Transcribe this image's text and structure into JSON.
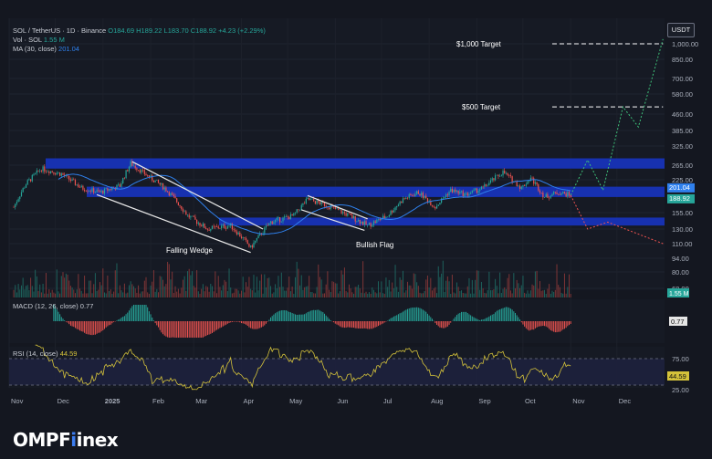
{
  "legend": {
    "symbol": "SOL / TetherUS · 1D · Binance",
    "ohlc": "O184.69  H189.22  L183.70  C188.92  +4.23 (+2.29%)",
    "vol_label": "Vol · SOL",
    "vol_value": "1.55 M",
    "ma_label": "MA (30, close)",
    "ma_value": "201.04",
    "macd_label": "MACD (12, 26, close)",
    "macd_value": "0.77",
    "rsi_label": "RSI (14, close)",
    "rsi_value": "44.59"
  },
  "currency": "USDT",
  "brand": {
    "part1": "OMPF",
    "part2": "inex"
  },
  "chart_data": {
    "type": "candlestick",
    "x_labels": [
      "Nov",
      "Dec",
      "2025",
      "Feb",
      "Mar",
      "Apr",
      "May",
      "Jun",
      "Jul",
      "Aug",
      "Sep",
      "Oct",
      "Nov",
      "Dec"
    ],
    "price_ticks": [
      "1,000.00",
      "850.00",
      "700.00",
      "580.00",
      "460.00",
      "385.00",
      "325.00",
      "265.00",
      "225.00",
      "155.00",
      "130.00",
      "110.00",
      "94.00",
      "80.00",
      "68.00"
    ],
    "price_badges": [
      {
        "value": "201.04",
        "color": "#2f80ed"
      },
      {
        "value": "188.92",
        "color": "#26a69a"
      }
    ],
    "macd_badge": "0.77",
    "rsi_ticks": [
      "75.00",
      "25.00"
    ],
    "rsi_badge": "44.59",
    "close_path": [
      [
        "2024-11-04",
        165
      ],
      [
        "2024-11-12",
        215
      ],
      [
        "2024-11-22",
        255
      ],
      [
        "2024-12-05",
        240
      ],
      [
        "2024-12-18",
        205
      ],
      [
        "2024-12-30",
        195
      ],
      [
        "2025-01-12",
        210
      ],
      [
        "2025-01-19",
        270
      ],
      [
        "2025-01-30",
        235
      ],
      [
        "2025-02-10",
        205
      ],
      [
        "2025-02-25",
        150
      ],
      [
        "2025-03-10",
        130
      ],
      [
        "2025-03-25",
        135
      ],
      [
        "2025-04-07",
        105
      ],
      [
        "2025-04-20",
        140
      ],
      [
        "2025-05-05",
        150
      ],
      [
        "2025-05-14",
        180
      ],
      [
        "2025-05-25",
        170
      ],
      [
        "2025-06-10",
        150
      ],
      [
        "2025-06-22",
        135
      ],
      [
        "2025-07-05",
        150
      ],
      [
        "2025-07-15",
        180
      ],
      [
        "2025-07-25",
        195
      ],
      [
        "2025-08-05",
        165
      ],
      [
        "2025-08-15",
        200
      ],
      [
        "2025-08-25",
        190
      ],
      [
        "2025-09-05",
        205
      ],
      [
        "2025-09-18",
        245
      ],
      [
        "2025-09-30",
        205
      ],
      [
        "2025-10-06",
        230
      ],
      [
        "2025-10-15",
        185
      ],
      [
        "2025-10-24",
        195
      ],
      [
        "2025-11-01",
        188.92
      ]
    ],
    "bands": [
      {
        "from": 255,
        "to": 285
      },
      {
        "from": 185,
        "to": 208
      },
      {
        "from": 135,
        "to": 147
      }
    ],
    "patterns": [
      {
        "label": "Falling Wedge"
      },
      {
        "label": "Bullish Flag"
      }
    ],
    "targets": [
      {
        "label": "$1,000 Target",
        "value": 1000
      },
      {
        "label": "$500 Target",
        "value": 500
      }
    ],
    "bull_projection": [
      [
        "2025-11-01",
        188.92
      ],
      [
        "2025-11-12",
        280
      ],
      [
        "2025-11-22",
        200
      ],
      [
        "2025-12-05",
        500
      ],
      [
        "2025-12-15",
        400
      ],
      [
        "2025-12-31",
        1050
      ]
    ],
    "bear_projection": [
      [
        "2025-11-01",
        188.92
      ],
      [
        "2025-11-12",
        130
      ],
      [
        "2025-11-25",
        140
      ],
      [
        "2025-12-31",
        110
      ]
    ]
  }
}
